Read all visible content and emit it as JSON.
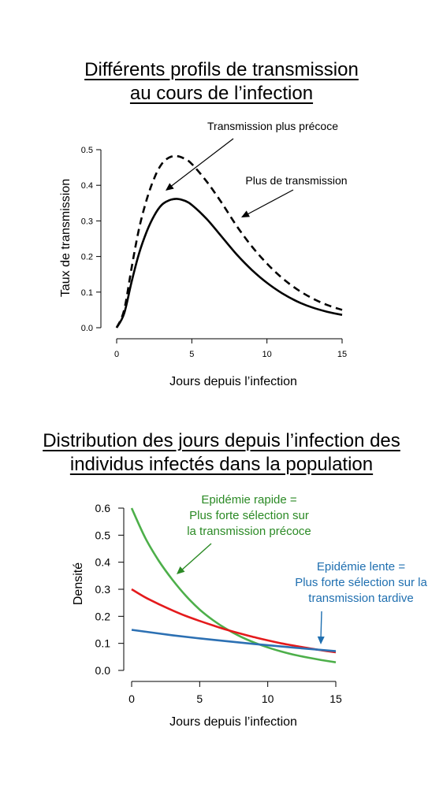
{
  "chart_data": [
    {
      "type": "line",
      "title_lines": [
        "Différents profils de transmission",
        "au cours de l’infection"
      ],
      "xlabel": "Jours depuis l’infection",
      "ylabel": "Taux de transmission",
      "xlim": [
        0,
        15
      ],
      "ylim": [
        0,
        0.5
      ],
      "xticks": [
        0,
        5,
        10,
        15
      ],
      "yticks": [
        "0.0",
        "0.1",
        "0.2",
        "0.3",
        "0.4",
        "0.5"
      ],
      "grid": false,
      "series": [
        {
          "style": "solid",
          "color": "#000000",
          "x": [
            0,
            0.5,
            1,
            1.5,
            2,
            2.5,
            3,
            3.5,
            4,
            4.5,
            5,
            6,
            7,
            8,
            9,
            10,
            11,
            12,
            13,
            14,
            15
          ],
          "y": [
            0,
            0.04,
            0.13,
            0.21,
            0.27,
            0.315,
            0.345,
            0.358,
            0.362,
            0.357,
            0.345,
            0.305,
            0.255,
            0.205,
            0.162,
            0.126,
            0.097,
            0.074,
            0.057,
            0.045,
            0.036
          ]
        },
        {
          "style": "dashed",
          "color": "#000000",
          "x": [
            0,
            0.5,
            1,
            1.5,
            2,
            2.5,
            3,
            3.5,
            4,
            4.5,
            5,
            6,
            7,
            8,
            9,
            10,
            11,
            12,
            13,
            14,
            15
          ],
          "y": [
            0,
            0.05,
            0.17,
            0.28,
            0.36,
            0.42,
            0.46,
            0.478,
            0.482,
            0.475,
            0.46,
            0.41,
            0.35,
            0.285,
            0.228,
            0.18,
            0.14,
            0.108,
            0.083,
            0.064,
            0.05
          ]
        }
      ],
      "annotations": [
        {
          "text": "Transmission plus précoce",
          "color": "#000000"
        },
        {
          "text": "Plus de transmission",
          "color": "#000000"
        }
      ]
    },
    {
      "type": "line",
      "title_lines": [
        "Distribution des jours depuis l’infection des",
        "individus infectés dans la population"
      ],
      "xlabel": "Jours depuis l’infection",
      "ylabel": "Densité",
      "xlim": [
        0,
        15
      ],
      "ylim": [
        0,
        0.6
      ],
      "xticks": [
        0,
        5,
        10,
        15
      ],
      "yticks": [
        "0.0",
        "0.1",
        "0.2",
        "0.3",
        "0.4",
        "0.5",
        "0.6"
      ],
      "grid": false,
      "series": [
        {
          "color": "#4daf4a",
          "x": [
            0,
            1,
            2,
            3,
            4,
            5,
            6,
            7,
            8,
            9,
            10,
            11,
            12,
            13,
            14,
            15
          ],
          "y": [
            0.6,
            0.49,
            0.405,
            0.335,
            0.275,
            0.225,
            0.185,
            0.152,
            0.125,
            0.103,
            0.085,
            0.07,
            0.057,
            0.047,
            0.038,
            0.03
          ]
        },
        {
          "color": "#e41a1c",
          "x": [
            0,
            1,
            2,
            3,
            4,
            5,
            6,
            7,
            8,
            9,
            10,
            11,
            12,
            13,
            14,
            15
          ],
          "y": [
            0.3,
            0.27,
            0.245,
            0.222,
            0.201,
            0.183,
            0.166,
            0.15,
            0.136,
            0.123,
            0.111,
            0.1,
            0.091,
            0.082,
            0.074,
            0.067
          ]
        },
        {
          "color": "#2c70b3",
          "x": [
            0,
            3,
            6,
            9,
            12,
            15
          ],
          "y": [
            0.15,
            0.13,
            0.113,
            0.098,
            0.084,
            0.071
          ]
        }
      ],
      "annotations": [
        {
          "lines": [
            "Epidémie rapide =",
            "Plus forte sélection sur",
            "la transmission précoce"
          ],
          "color": "#2b8a25"
        },
        {
          "lines": [
            "Epidémie lente =",
            "Plus forte sélection sur la",
            "transmission tardive"
          ],
          "color": "#1f6fb0"
        }
      ]
    }
  ]
}
